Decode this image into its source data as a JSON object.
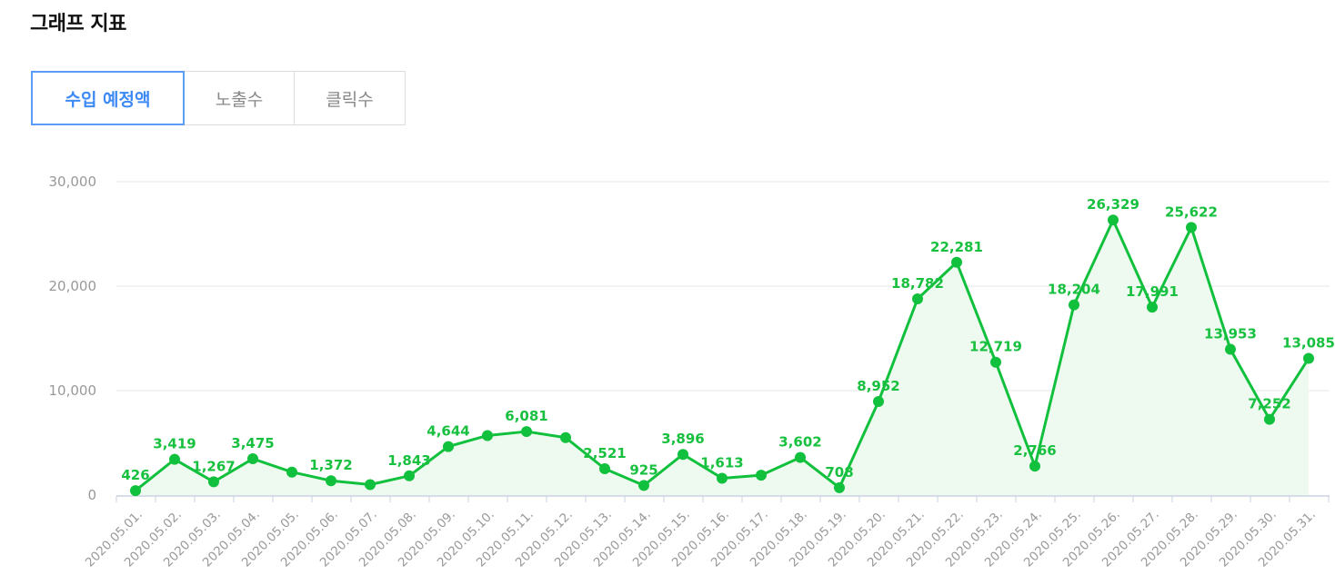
{
  "header": {
    "title": "그래프 지표"
  },
  "tabs": [
    {
      "label": "수입 예정액",
      "active": true
    },
    {
      "label": "노출수",
      "active": false
    },
    {
      "label": "클릭수",
      "active": false
    }
  ],
  "colors": {
    "line": "#11c03c",
    "fill": "#eefaf0",
    "active_tab": "#3d8af7",
    "grid": "#e6e6e6"
  },
  "chart_data": {
    "type": "area",
    "categories": [
      "2020.05.01.",
      "2020.05.02.",
      "2020.05.03.",
      "2020.05.04.",
      "2020.05.05.",
      "2020.05.06.",
      "2020.05.07.",
      "2020.05.08.",
      "2020.05.09.",
      "2020.05.10.",
      "2020.05.11.",
      "2020.05.12.",
      "2020.05.13.",
      "2020.05.14.",
      "2020.05.15.",
      "2020.05.16.",
      "2020.05.17.",
      "2020.05.18.",
      "2020.05.19.",
      "2020.05.20.",
      "2020.05.21.",
      "2020.05.22.",
      "2020.05.23.",
      "2020.05.24.",
      "2020.05.25.",
      "2020.05.26.",
      "2020.05.27.",
      "2020.05.28.",
      "2020.05.29.",
      "2020.05.30.",
      "2020.05.31."
    ],
    "values": [
      426,
      3419,
      1267,
      3475,
      2200,
      1372,
      1000,
      1843,
      4644,
      5700,
      6081,
      5500,
      2521,
      925,
      3896,
      1613,
      1900,
      3602,
      708,
      8952,
      18782,
      22281,
      12719,
      2766,
      18204,
      26329,
      17991,
      25622,
      13953,
      7252,
      13085
    ],
    "labels": [
      "426",
      "3,419",
      "1,267",
      "3,475",
      "",
      "1,372",
      "",
      "1,843",
      "4,644",
      "",
      "6,081",
      "",
      "2,521",
      "925",
      "3,896",
      "1,613",
      "",
      "3,602",
      "708",
      "8,952",
      "18,782",
      "22,281",
      "12,719",
      "2,766",
      "18,204",
      "26,329",
      "17,991",
      "25,622",
      "13,953",
      "7,252",
      "13,085"
    ],
    "yticks": [
      "0",
      "10,000",
      "20,000",
      "30,000"
    ],
    "ylim": [
      0,
      30000
    ],
    "grid": true,
    "legend": "none",
    "title": "",
    "xlabel": "",
    "ylabel": ""
  }
}
